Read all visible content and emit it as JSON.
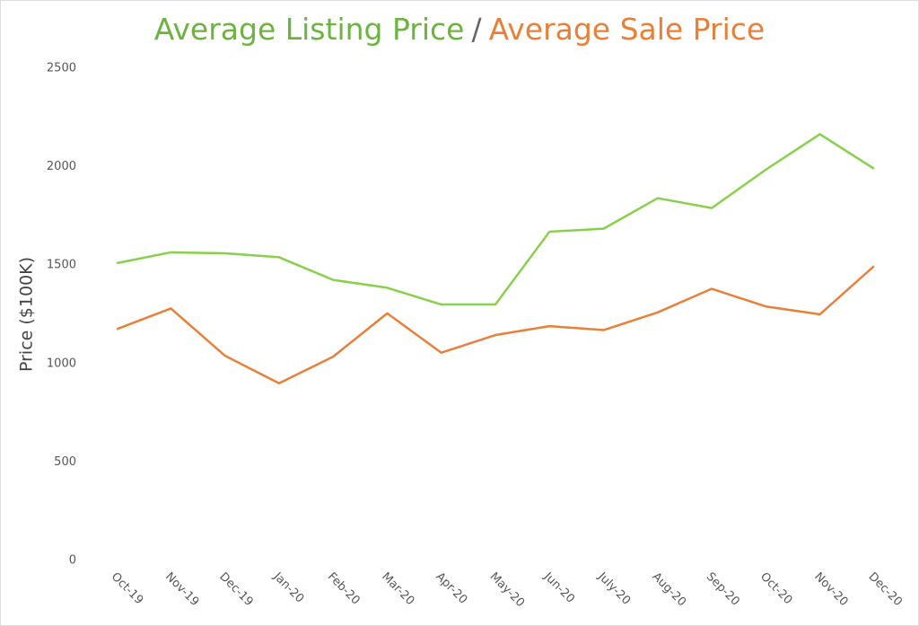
{
  "chart_data": {
    "type": "line",
    "title_separator": "/",
    "y_label": "Price ($100K)",
    "categories": [
      "Oct-19",
      "Nov-19",
      "Dec-19",
      "Jan-20",
      "Feb-20",
      "Mar-20",
      "Apr-20",
      "May-20",
      "Jun-20",
      "July-20",
      "Aug-20",
      "Sep-20",
      "Oct-20",
      "Nov-20",
      "Dec-20"
    ],
    "series": [
      {
        "name": "Average Listing Price",
        "color": "#88d04b",
        "title_color": "#6db33f",
        "values": [
          1510,
          1565,
          1560,
          1540,
          1425,
          1385,
          1300,
          1300,
          1670,
          1685,
          1840,
          1790,
          1985,
          2165,
          1990
        ]
      },
      {
        "name": "Average Sale Price",
        "color": "#e8803a",
        "title_color": "#e8803a",
        "values": [
          1175,
          1280,
          1040,
          900,
          1035,
          1255,
          1055,
          1145,
          1190,
          1170,
          1260,
          1380,
          1290,
          1250,
          1495
        ]
      }
    ],
    "ylim": [
      0,
      2500
    ],
    "yticks": [
      0,
      500,
      1000,
      1500,
      2000,
      2500
    ],
    "grid": false
  }
}
